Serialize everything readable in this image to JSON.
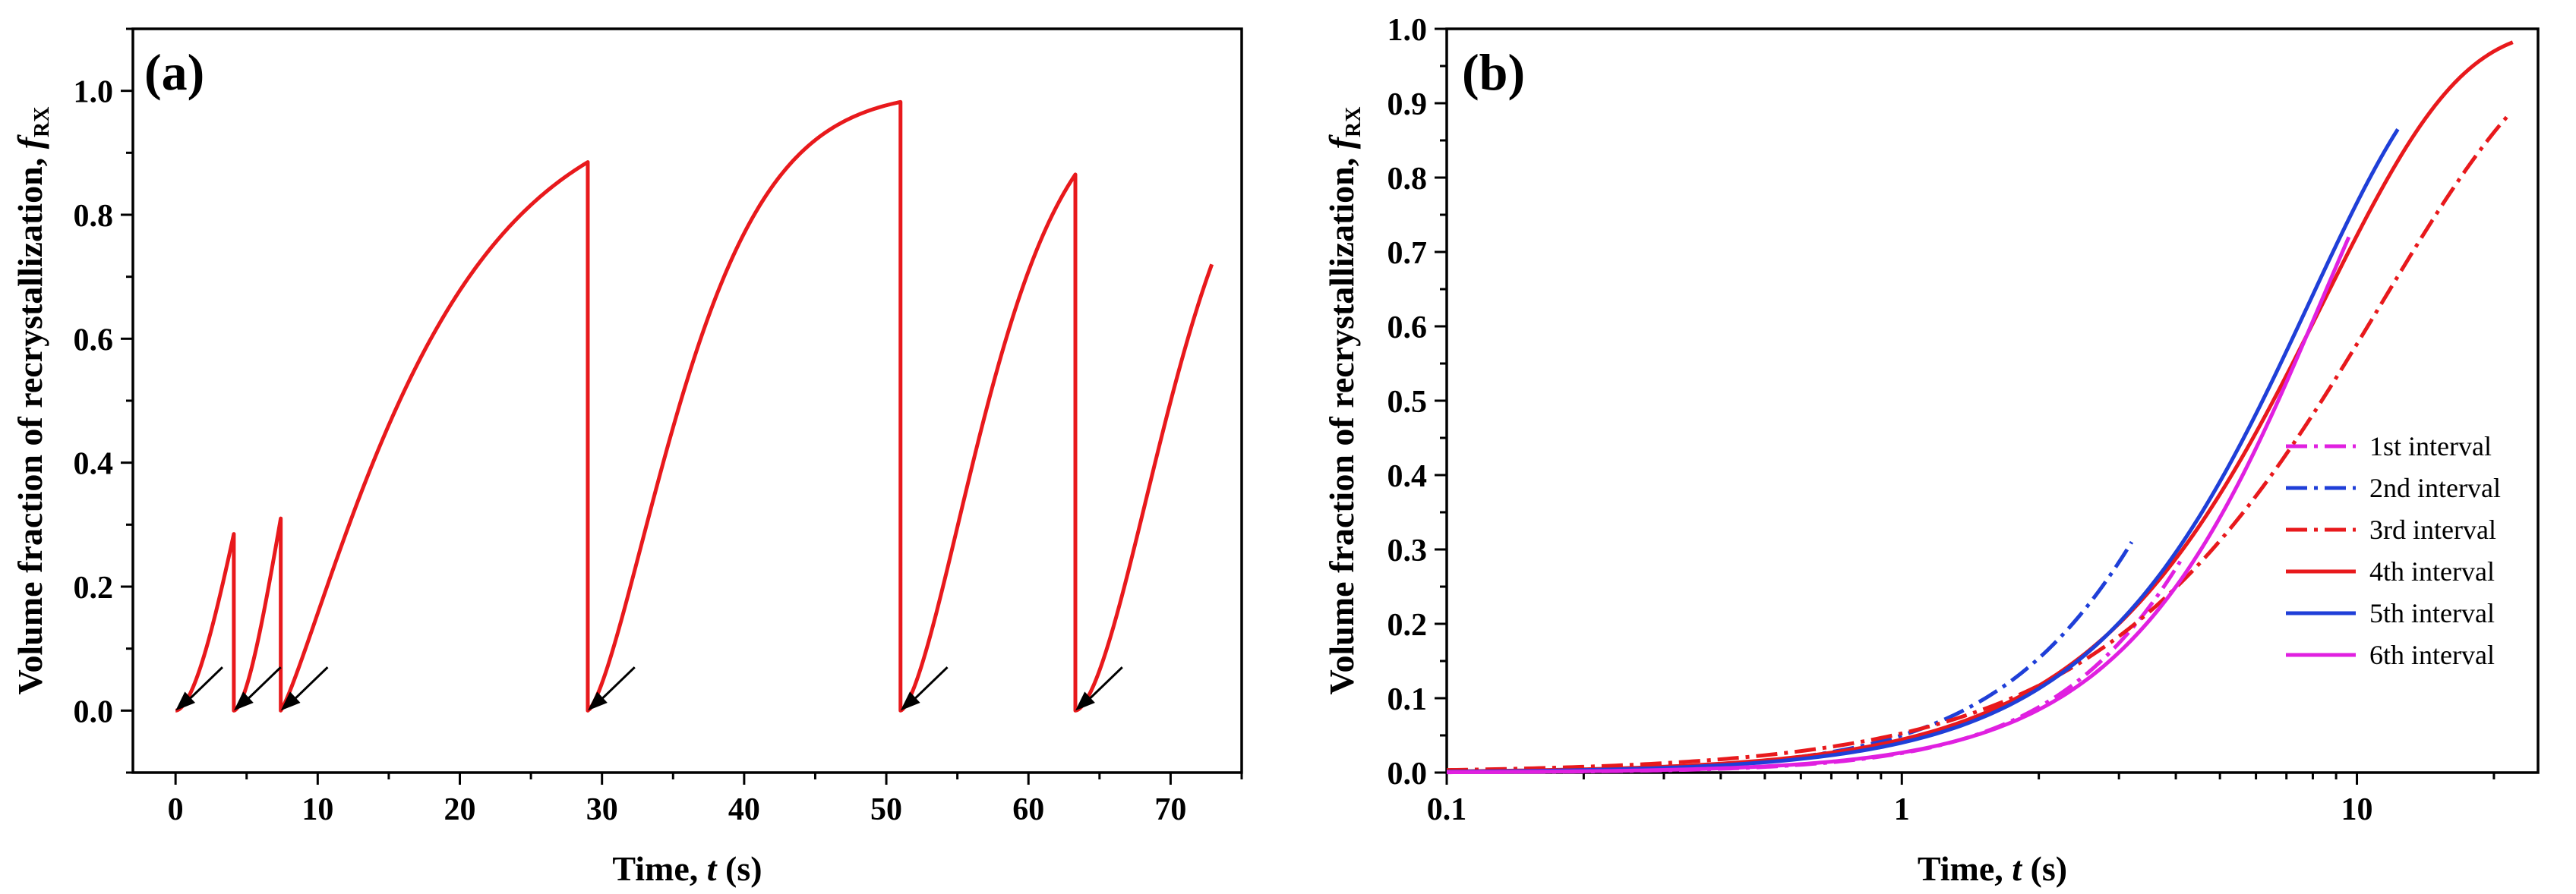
{
  "chart_data": [
    {
      "type": "line",
      "panel_label": "(a)",
      "xlabel": {
        "main": "Time, ",
        "var": "t",
        "unit": " (s)"
      },
      "ylabel": {
        "main": "Volume fraction of recrystallization, ",
        "var": "f",
        "sub": "RX"
      },
      "xlim": [
        -3,
        75
      ],
      "ylim": [
        -0.1,
        1.1
      ],
      "xticks": [
        0,
        10,
        20,
        30,
        40,
        50,
        60,
        70
      ],
      "xtick_labels": [
        "0",
        "10",
        "20",
        "30",
        "40",
        "50",
        "60",
        "70"
      ],
      "yticks": [
        0.0,
        0.2,
        0.4,
        0.6,
        0.8,
        1.0
      ],
      "ytick_labels": [
        "0.0",
        "0.2",
        "0.4",
        "0.6",
        "0.8",
        "1.0"
      ],
      "color": "#e8191c",
      "series": [
        {
          "name": "f_RX",
          "segments": [
            {
              "start": 0.0,
              "end": 4.1,
              "k": 0.02,
              "n": 1.8,
              "y_end": 0.285
            },
            {
              "start": 4.1,
              "end": 7.4,
              "k": 0.028,
              "n": 1.7,
              "y_end": 0.31
            },
            {
              "start": 7.4,
              "end": 29.0,
              "k": 0.06,
              "n": 1.2,
              "y_end": 0.885
            },
            {
              "start": 29.0,
              "end": 51.0,
              "k": 0.22,
              "n": 1.45,
              "y_end": 0.982
            },
            {
              "start": 51.0,
              "end": 63.3,
              "k": 0.16,
              "n": 1.55,
              "y_end": 0.865
            },
            {
              "start": 63.3,
              "end": 72.9,
              "k": 0.115,
              "n": 1.7,
              "y_end": 0.72
            }
          ]
        }
      ],
      "annotations": {
        "type": "arrows",
        "tips": [
          0.0,
          4.1,
          7.4,
          29.0,
          51.0,
          63.3
        ],
        "tip_y": 0.0,
        "tail_dx": 3.3,
        "tail_dy": 0.07
      }
    },
    {
      "type": "line",
      "panel_label": "(b)",
      "xscale": "log",
      "xlabel": {
        "main": "Time, ",
        "var": "t",
        "unit": " (s)"
      },
      "ylabel": {
        "main": "Volume fraction of recrystallization, ",
        "var": "f",
        "sub": "RX"
      },
      "xlim": [
        0.1,
        25
      ],
      "ylim": [
        0.0,
        1.0
      ],
      "xticks": [
        0.1,
        1,
        10
      ],
      "xtick_labels": [
        "0.1",
        "1",
        "10"
      ],
      "yticks": [
        0.0,
        0.1,
        0.2,
        0.3,
        0.4,
        0.5,
        0.6,
        0.7,
        0.8,
        0.9,
        1.0
      ],
      "ytick_labels": [
        "0.0",
        "0.1",
        "0.2",
        "0.3",
        "0.4",
        "0.5",
        "0.6",
        "0.7",
        "0.8",
        "0.9",
        "1.0"
      ],
      "legend_position": "lower-right",
      "series": [
        {
          "name": "1st interval",
          "color": "#e020e0",
          "style": "dashdot",
          "t_end": 4.1,
          "y_end": 0.285,
          "n": 1.8
        },
        {
          "name": "2nd interval",
          "color": "#1f3fd8",
          "style": "dashdot",
          "t_end": 3.2,
          "y_end": 0.31,
          "n": 1.7
        },
        {
          "name": "3rd interval",
          "color": "#e8191c",
          "style": "dashdot",
          "t_end": 21.6,
          "y_end": 0.885,
          "n": 1.2
        },
        {
          "name": "4th interval",
          "color": "#e8191c",
          "style": "solid",
          "t_end": 22.0,
          "y_end": 0.982,
          "n": 1.45
        },
        {
          "name": "5th interval",
          "color": "#1f3fd8",
          "style": "solid",
          "t_end": 12.3,
          "y_end": 0.865,
          "n": 1.55
        },
        {
          "name": "6th interval",
          "color": "#e020e0",
          "style": "solid",
          "t_end": 9.6,
          "y_end": 0.72,
          "n": 1.7
        }
      ]
    }
  ]
}
